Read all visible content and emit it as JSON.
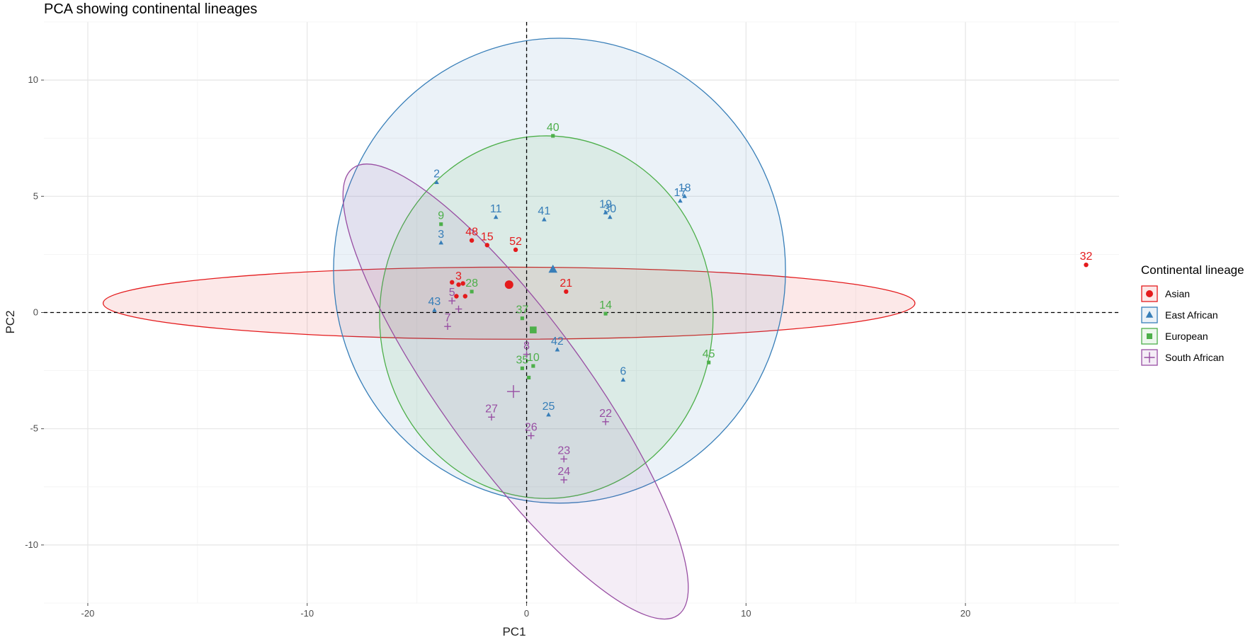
{
  "chart_data": {
    "type": "scatter",
    "title": "PCA showing continental lineages",
    "xlabel": "PC1",
    "ylabel": "PC2",
    "xlim": [
      -22,
      27
    ],
    "ylim": [
      -12.5,
      12.5
    ],
    "x_ticks": [
      -20,
      -10,
      0,
      10,
      20
    ],
    "y_ticks": [
      -10,
      -5,
      0,
      5,
      10
    ],
    "grid": true,
    "reference_lines": {
      "x": 0,
      "y": 0,
      "style": "dashed"
    },
    "legend": {
      "title": "Continental lineage",
      "position": "right"
    },
    "series": [
      {
        "name": "Asian",
        "color": "#e41a1c",
        "marker": "circle",
        "centroid": {
          "x": -0.8,
          "y": 1.2
        },
        "ellipse": {
          "cx": -0.8,
          "cy": 0.4,
          "rx": 18.5,
          "ry": 1.55,
          "angle_deg": 0
        },
        "points": [
          {
            "label": "48",
            "x": -2.5,
            "y": 3.1
          },
          {
            "label": "15",
            "x": -1.8,
            "y": 2.9
          },
          {
            "label": "52",
            "x": -0.5,
            "y": 2.7
          },
          {
            "label": "21",
            "x": 1.8,
            "y": 0.9
          },
          {
            "label": "32",
            "x": 25.5,
            "y": 2.05
          },
          {
            "label": "3",
            "x": -3.1,
            "y": 1.2
          },
          {
            "label": "",
            "x": -3.4,
            "y": 1.3
          },
          {
            "label": "",
            "x": -2.9,
            "y": 1.25
          },
          {
            "label": "",
            "x": -3.2,
            "y": 0.7
          },
          {
            "label": "",
            "x": -2.8,
            "y": 0.7
          }
        ]
      },
      {
        "name": "East African",
        "color": "#377eb8",
        "marker": "triangle",
        "centroid": {
          "x": 1.2,
          "y": 1.85
        },
        "ellipse": {
          "cx": 1.5,
          "cy": 1.8,
          "rx": 10.3,
          "ry": 10.0,
          "angle_deg": 0
        },
        "points": [
          {
            "label": "2",
            "x": -4.1,
            "y": 5.6
          },
          {
            "label": "11",
            "x": -1.4,
            "y": 4.1
          },
          {
            "label": "41",
            "x": 0.8,
            "y": 4.0
          },
          {
            "label": "19",
            "x": 3.6,
            "y": 4.3
          },
          {
            "label": "30",
            "x": 3.8,
            "y": 4.1
          },
          {
            "label": "17",
            "x": 7.0,
            "y": 4.8
          },
          {
            "label": "18",
            "x": 7.2,
            "y": 5.0
          },
          {
            "label": "3",
            "x": -3.9,
            "y": 3.0
          },
          {
            "label": "43",
            "x": -4.2,
            "y": 0.1
          },
          {
            "label": "42",
            "x": 1.4,
            "y": -1.6
          },
          {
            "label": "6",
            "x": 4.4,
            "y": -2.9
          },
          {
            "label": "25",
            "x": 1.0,
            "y": -4.4
          }
        ]
      },
      {
        "name": "European",
        "color": "#4daf4a",
        "marker": "square",
        "centroid": {
          "x": 0.3,
          "y": -0.75
        },
        "ellipse": {
          "cx": 0.9,
          "cy": -0.2,
          "rx": 7.6,
          "ry": 7.8,
          "angle_deg": 0
        },
        "points": [
          {
            "label": "40",
            "x": 1.2,
            "y": 7.6
          },
          {
            "label": "9",
            "x": -3.9,
            "y": 3.8
          },
          {
            "label": "28",
            "x": -2.5,
            "y": 0.9
          },
          {
            "label": "37",
            "x": -0.2,
            "y": -0.25
          },
          {
            "label": "14",
            "x": 3.6,
            "y": -0.05
          },
          {
            "label": "45",
            "x": 8.3,
            "y": -2.15
          },
          {
            "label": "35",
            "x": -0.2,
            "y": -2.4
          },
          {
            "label": "10",
            "x": 0.3,
            "y": -2.3
          },
          {
            "label": "",
            "x": 0.1,
            "y": -2.8
          }
        ]
      },
      {
        "name": "South African",
        "color": "#984ea3",
        "marker": "plus",
        "centroid": {
          "x": -0.6,
          "y": -3.4
        },
        "ellipse": {
          "cx": -0.5,
          "cy": -3.4,
          "rx": 12.6,
          "ry": 3.1,
          "angle_deg": 54
        },
        "points": [
          {
            "label": "5",
            "x": -3.4,
            "y": 0.5
          },
          {
            "label": "7",
            "x": -3.6,
            "y": -0.6
          },
          {
            "label": "",
            "x": -3.1,
            "y": 0.15
          },
          {
            "label": "8",
            "x": 0.0,
            "y": -1.8
          },
          {
            "label": "27",
            "x": -1.6,
            "y": -4.5
          },
          {
            "label": "26",
            "x": 0.2,
            "y": -5.3
          },
          {
            "label": "22",
            "x": 3.6,
            "y": -4.7
          },
          {
            "label": "23",
            "x": 1.7,
            "y": -6.3
          },
          {
            "label": "24",
            "x": 1.7,
            "y": -7.2
          }
        ]
      }
    ]
  }
}
